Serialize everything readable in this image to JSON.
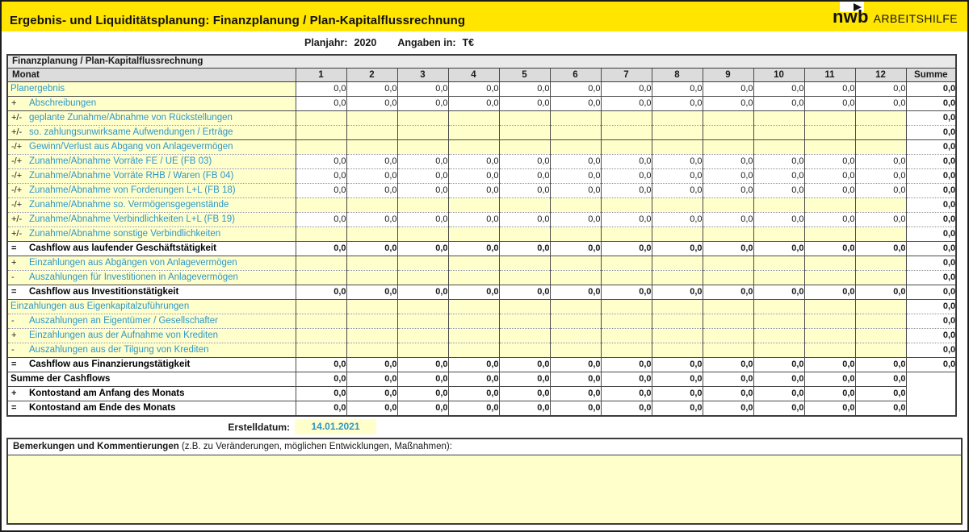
{
  "page": {
    "title": "Ergebnis- und Liquiditätsplanung: Finanzplanung / Plan-Kapitalflussrechnung",
    "brand": {
      "name": "nwb",
      "suffix": "ARBEITSHILFE"
    },
    "meta": {
      "planjahr_label": "Planjahr:",
      "planjahr_value": "2020",
      "angaben_label": "Angaben in:",
      "angaben_value": "T€"
    }
  },
  "colors": {
    "brand_yellow": "#FFE500",
    "input_yellow": "#FFFFCC",
    "link_blue": "#2E96C8",
    "grid_border": "#3c3c3c"
  },
  "table": {
    "section_title": "Finanzplanung / Plan-Kapitalflussrechnung",
    "header": {
      "monat": "Monat",
      "months": [
        "1",
        "2",
        "3",
        "4",
        "5",
        "6",
        "7",
        "8",
        "9",
        "10",
        "11",
        "12"
      ],
      "summe": "Summe"
    },
    "zero": "0,0",
    "rows": [
      {
        "prefix": "",
        "label": "Planergebnis",
        "kind": "data",
        "months": "zeros",
        "sum": "0,0",
        "divider": "solid"
      },
      {
        "prefix": "+",
        "label": "Abschreibungen",
        "kind": "data",
        "months": "zeros",
        "sum": "0,0",
        "divider": "solid"
      },
      {
        "prefix": "+/-",
        "label": "geplante Zunahme/Abnahme von Rückstellungen",
        "kind": "input",
        "months": "empty",
        "sum": "0,0",
        "divider": "dotted"
      },
      {
        "prefix": "+/-",
        "label": "so. zahlungsunwirksame Aufwendungen / Erträge",
        "kind": "input",
        "months": "empty",
        "sum": "0,0",
        "divider": "solid"
      },
      {
        "prefix": "-/+",
        "label": "Gewinn/Verlust aus Abgang von Anlagevermögen",
        "kind": "input",
        "months": "empty",
        "sum": "0,0",
        "divider": "dotted"
      },
      {
        "prefix": "-/+",
        "label": "Zunahme/Abnahme Vorräte FE / UE (FB 03)",
        "kind": "data",
        "months": "zeros",
        "sum": "0,0",
        "divider": "dotted"
      },
      {
        "prefix": "-/+",
        "label": "Zunahme/Abnahme Vorräte RHB / Waren (FB 04)",
        "kind": "data",
        "months": "zeros",
        "sum": "0,0",
        "divider": "dotted"
      },
      {
        "prefix": "-/+",
        "label": "Zunahme/Abnahme von Forderungen L+L (FB 18)",
        "kind": "data",
        "months": "zeros",
        "sum": "0,0",
        "divider": "dotted"
      },
      {
        "prefix": "-/+",
        "label": "Zunahme/Abnahme so. Vermögensgegenstände",
        "kind": "input",
        "months": "empty",
        "sum": "0,0",
        "divider": "dotted"
      },
      {
        "prefix": "+/-",
        "label": "Zunahme/Abnahme Verbindlichkeiten L+L (FB 19)",
        "kind": "data",
        "months": "zeros",
        "sum": "0,0",
        "divider": "dotted"
      },
      {
        "prefix": "+/-",
        "label": "Zunahme/Abnahme sonstige Verbindlichkeiten",
        "kind": "input",
        "months": "empty",
        "sum": "0,0",
        "divider": "solid"
      },
      {
        "prefix": "=",
        "label": "Cashflow aus laufender Geschäftstätigkeit",
        "kind": "total",
        "months": "zeros",
        "sum": "0,0",
        "divider": "solid"
      },
      {
        "prefix": "+",
        "label": "Einzahlungen aus Abgängen von Anlagevermögen",
        "kind": "input",
        "months": "empty",
        "sum": "0,0",
        "divider": "dotted"
      },
      {
        "prefix": "-",
        "label": "Auszahlungen für Investitionen in Anlagevermögen",
        "kind": "input",
        "months": "empty",
        "sum": "0,0",
        "divider": "solid"
      },
      {
        "prefix": "=",
        "label": "Cashflow aus Investitionstätigkeit",
        "kind": "total",
        "months": "zeros",
        "sum": "0,0",
        "divider": "solid"
      },
      {
        "prefix": "",
        "label": "Einzahlungen aus Eigenkapitalzuführungen",
        "kind": "input",
        "months": "empty",
        "sum": "0,0",
        "divider": "dotted"
      },
      {
        "prefix": "-",
        "label": "Auszahlungen an Eigentümer / Gesellschafter",
        "kind": "input",
        "months": "empty",
        "sum": "0,0",
        "divider": "dotted"
      },
      {
        "prefix": "+",
        "label": "Einzahlungen aus der Aufnahme von Krediten",
        "kind": "input",
        "months": "empty",
        "sum": "0,0",
        "divider": "dotted"
      },
      {
        "prefix": "-",
        "label": "Auszahlungen aus der Tilgung von Krediten",
        "kind": "input",
        "months": "empty",
        "sum": "0,0",
        "divider": "solid"
      },
      {
        "prefix": "=",
        "label": "Cashflow aus Finanzierungstätigkeit",
        "kind": "total",
        "months": "zeros",
        "sum": "0,0",
        "divider": "solid"
      },
      {
        "prefix": "",
        "label": "Summe der Cashflows",
        "kind": "total",
        "months": "zeros",
        "sum": null,
        "divider": "solid"
      },
      {
        "prefix": "+",
        "label": "Kontostand am Anfang des Monats",
        "kind": "total",
        "months": "zeros",
        "sum": null,
        "divider": "solid"
      },
      {
        "prefix": "=",
        "label": "Kontostand am Ende des Monats",
        "kind": "total",
        "months": "zeros",
        "sum": null,
        "divider": "solid"
      }
    ]
  },
  "footer": {
    "erstelldatum_label": "Erstelldatum:",
    "erstelldatum_value": "14.01.2021",
    "bemerkungen_bold": "Bemerkungen und Kommentierungen",
    "bemerkungen_rest": " (z.B. zu Veränderungen, möglichen Entwicklungen, Maßnahmen):"
  }
}
